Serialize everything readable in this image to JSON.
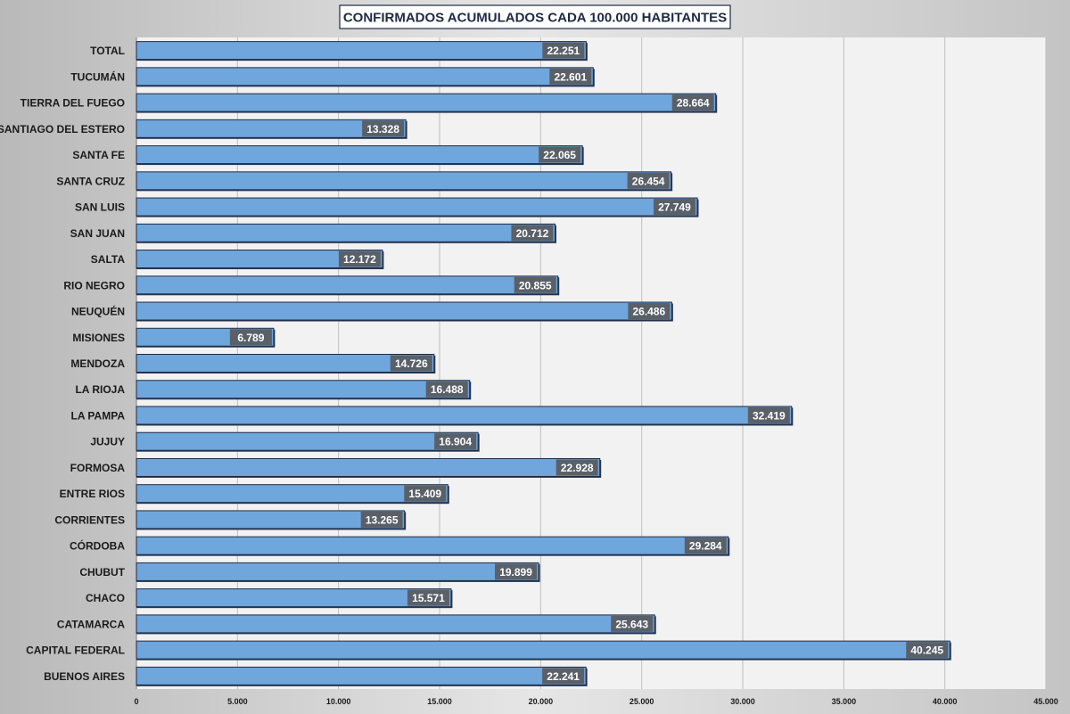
{
  "chart_data": {
    "type": "bar",
    "orientation": "horizontal",
    "title": "CONFIRMADOS ACUMULADOS CADA 100.000 HABITANTES",
    "categories": [
      "TOTAL",
      "TUCUMÁN",
      "TIERRA DEL FUEGO",
      "SANTIAGO DEL ESTERO",
      "SANTA FE",
      "SANTA CRUZ",
      "SAN LUIS",
      "SAN JUAN",
      "SALTA",
      "RIO NEGRO",
      "NEUQUÉN",
      "MISIONES",
      "MENDOZA",
      "LA RIOJA",
      "LA PAMPA",
      "JUJUY",
      "FORMOSA",
      "ENTRE RIOS",
      "CORRIENTES",
      "CÓRDOBA",
      "CHUBUT",
      "CHACO",
      "CATAMARCA",
      "CAPITAL FEDERAL",
      "BUENOS AIRES"
    ],
    "values": [
      22251,
      22601,
      28664,
      13328,
      22065,
      26454,
      27749,
      20712,
      12172,
      20855,
      26486,
      6789,
      14726,
      16488,
      32419,
      16904,
      22928,
      15409,
      13265,
      29284,
      19899,
      15571,
      25643,
      40245,
      22241
    ],
    "value_labels": [
      "22.251",
      "22.601",
      "28.664",
      "13.328",
      "22.065",
      "26.454",
      "27.749",
      "20.712",
      "12.172",
      "20.855",
      "26.486",
      "6.789",
      "14.726",
      "16.488",
      "32.419",
      "16.904",
      "22.928",
      "15.409",
      "13.265",
      "29.284",
      "19.899",
      "15.571",
      "25.643",
      "40.245",
      "22.241"
    ],
    "xlim": [
      0,
      45000
    ],
    "x_ticks": [
      0,
      5000,
      10000,
      15000,
      20000,
      25000,
      30000,
      35000,
      40000,
      45000
    ],
    "x_tick_labels": [
      "0",
      "5.000",
      "10.000",
      "15.000",
      "20.000",
      "25.000",
      "30.000",
      "35.000",
      "40.000",
      "45.000"
    ],
    "grid": true,
    "legend": "none",
    "colors": {
      "bar": "#6fa6dc",
      "bar_border": "#1f2a44",
      "label_bg": "#5a6068",
      "plot_bg": "#f2f2f2",
      "grid": "#bfbfbf"
    }
  }
}
